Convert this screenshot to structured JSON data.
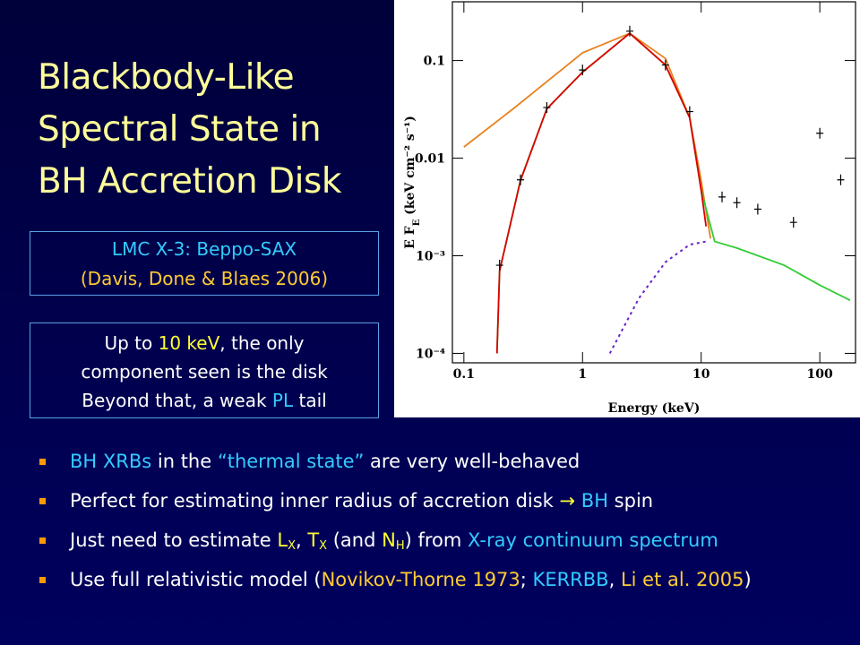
{
  "title_lines": [
    "Blackbody-Like",
    "Spectral State in",
    "BH Accretion Disk"
  ],
  "source_box": {
    "lines": [
      [
        {
          "text": "LMC X-3: Beppo-SAX",
          "color": "cyan"
        }
      ],
      [
        {
          "text": "(Davis, Done & Blaes 2006)",
          "color": "gold"
        }
      ]
    ]
  },
  "note_box": {
    "lines": [
      [
        {
          "text": "Up to ",
          "color": "white"
        },
        {
          "text": "10 keV",
          "color": "yellow"
        },
        {
          "text": ", the only",
          "color": "white"
        }
      ],
      [
        {
          "text": "component seen is the disk",
          "color": "white"
        }
      ],
      [
        {
          "text": "Beyond that, a weak ",
          "color": "white"
        },
        {
          "text": "PL",
          "color": "cyan"
        },
        {
          "text": " tail",
          "color": "white"
        }
      ]
    ]
  },
  "bullets": [
    [
      {
        "text": "BH XRBs",
        "color": "cyan"
      },
      {
        "text": " in the ",
        "color": "white"
      },
      {
        "text": "“thermal state”",
        "color": "cyan"
      },
      {
        "text": " are very well-behaved",
        "color": "white"
      }
    ],
    [
      {
        "text": "Perfect for estimating inner radius of accretion disk ",
        "color": "white"
      },
      {
        "text": "→ ",
        "color": "yellow"
      },
      {
        "text": "BH",
        "color": "cyan"
      },
      {
        "text": " spin",
        "color": "white"
      }
    ],
    [
      {
        "text": "Just need to estimate ",
        "color": "white"
      },
      {
        "text": "L",
        "color": "yellow"
      },
      {
        "text": "X",
        "color": "yellow",
        "sub": true
      },
      {
        "text": ", ",
        "color": "white"
      },
      {
        "text": "T",
        "color": "yellow"
      },
      {
        "text": "X",
        "color": "yellow",
        "sub": true
      },
      {
        "text": " (and ",
        "color": "white"
      },
      {
        "text": "N",
        "color": "yellow"
      },
      {
        "text": "H",
        "color": "yellow",
        "sub": true
      },
      {
        "text": ") from ",
        "color": "white"
      },
      {
        "text": "X-ray continuum spectrum",
        "color": "cyan"
      }
    ],
    [
      {
        "text": "Use full relativistic model (",
        "color": "white"
      },
      {
        "text": "Novikov-Thorne 1973",
        "color": "gold"
      },
      {
        "text": "; ",
        "color": "white"
      },
      {
        "text": "KERRBB",
        "color": "cyan"
      },
      {
        "text": ", ",
        "color": "white"
      },
      {
        "text": "Li et al. 2005",
        "color": "gold"
      },
      {
        "text": ")",
        "color": "white"
      }
    ]
  ],
  "chart_data": {
    "type": "line",
    "x_label": "Energy (keV)",
    "y_label": {
      "main": "E F",
      "sub": "E",
      "units": " (keV cm⁻² s⁻¹)"
    },
    "log_x": true,
    "log_y": true,
    "grid": false,
    "xlim": [
      0.08,
      200
    ],
    "ylim": [
      8e-05,
      0.4
    ],
    "xticks": [
      0.1,
      1,
      10,
      100
    ],
    "yticks": [
      {
        "value": 0.0001,
        "label": "10⁻⁴"
      },
      {
        "value": 0.001,
        "label": "10⁻³"
      },
      0.01,
      0.1
    ],
    "series": [
      {
        "color": "#e8821e",
        "style": "solid",
        "x": [
          0.1,
          0.26,
          1,
          2.5,
          5,
          8,
          10,
          12
        ],
        "values": [
          0.013,
          0.032,
          0.12,
          0.19,
          0.105,
          0.026,
          0.0059,
          0.0015
        ]
      },
      {
        "color": "#33cc33",
        "style": "solid",
        "x": [
          0.19,
          0.2,
          0.3,
          0.5,
          1,
          2.5,
          5,
          8,
          10,
          13,
          20,
          50,
          100,
          180
        ],
        "values": [
          0.0001,
          0.0007,
          0.006,
          0.032,
          0.076,
          0.19,
          0.09,
          0.026,
          0.0047,
          0.0014,
          0.0012,
          0.0008,
          0.0005,
          0.00035
        ]
      },
      {
        "color": "#dd0000",
        "style": "solid",
        "x": [
          0.19,
          0.2,
          0.3,
          0.5,
          1,
          2.5,
          5,
          8,
          10,
          11
        ],
        "values": [
          0.0001,
          0.0007,
          0.0059,
          0.032,
          0.076,
          0.19,
          0.09,
          0.026,
          0.0047,
          0.002
        ]
      },
      {
        "color": "#6622cc",
        "style": "dashed",
        "x": [
          1.7,
          3,
          5,
          8,
          11
        ],
        "values": [
          0.0001,
          0.00037,
          0.00086,
          0.0013,
          0.0014
        ]
      },
      {
        "color": "#000000",
        "style": "cross",
        "x": [
          0.2,
          0.3,
          0.5,
          1,
          2.5,
          5,
          8,
          15,
          20,
          30,
          60,
          100,
          150
        ],
        "values": [
          0.0008,
          0.006,
          0.033,
          0.08,
          0.2,
          0.09,
          0.03,
          0.004,
          0.0035,
          0.003,
          0.0022,
          0.018,
          0.006
        ]
      }
    ]
  }
}
